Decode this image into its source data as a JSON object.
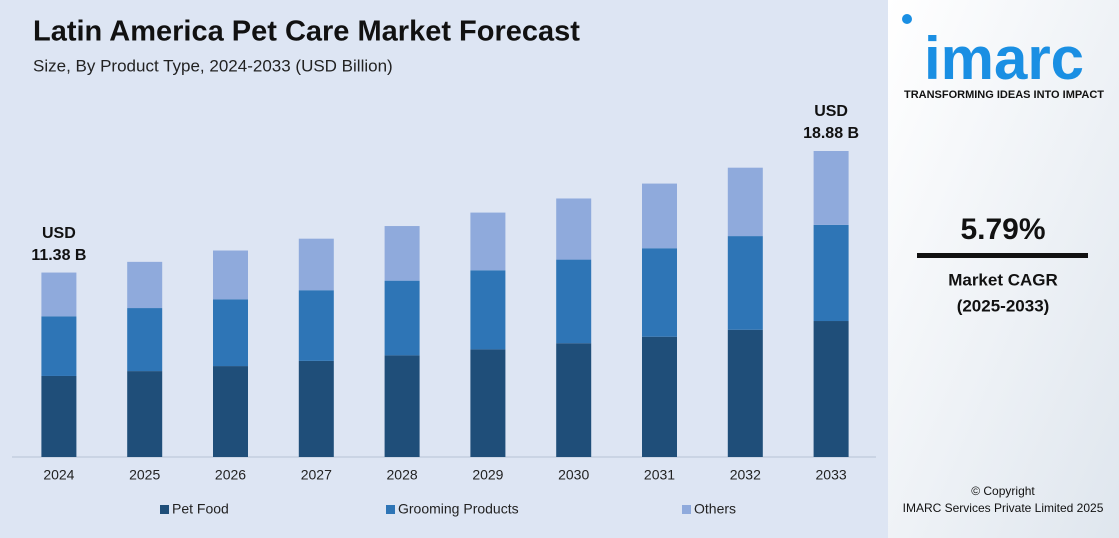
{
  "chart_data": {
    "type": "stacked-bar",
    "title": "Latin America Pet Care Market Forecast",
    "subtitle": "Size, By Product Type, 2024-2033 (USD Billion)",
    "categories": [
      "2024",
      "2025",
      "2026",
      "2027",
      "2028",
      "2029",
      "2030",
      "2031",
      "2032",
      "2033"
    ],
    "series": [
      {
        "name": "Pet Food",
        "color": "#1f4e79",
        "values": [
          5.0,
          5.3,
          5.61,
          5.93,
          6.27,
          6.64,
          7.02,
          7.42,
          7.85,
          8.39
        ]
      },
      {
        "name": "Grooming Products",
        "color": "#2e75b6",
        "values": [
          3.68,
          3.89,
          4.12,
          4.36,
          4.61,
          4.88,
          5.16,
          5.46,
          5.78,
          5.93
        ]
      },
      {
        "name": "Others",
        "color": "#8faadc",
        "values": [
          2.7,
          2.85,
          3.01,
          3.18,
          3.37,
          3.56,
          3.77,
          3.99,
          4.22,
          4.56
        ]
      }
    ],
    "annotations": [
      {
        "category": "2024",
        "lines": [
          "USD",
          "11.38 B"
        ]
      },
      {
        "category": "2033",
        "lines": [
          "USD",
          "18.88 B"
        ]
      }
    ],
    "legend": "bottom"
  },
  "sidebar": {
    "logo": "imarc",
    "tagline": "TRANSFORMING IDEAS INTO IMPACT",
    "cagr": "5.79%",
    "cagr_label": "Market CAGR",
    "cagr_period": "(2025-2033)",
    "copyright": "© Copyright",
    "company": "IMARC Services Private Limited 2025"
  }
}
